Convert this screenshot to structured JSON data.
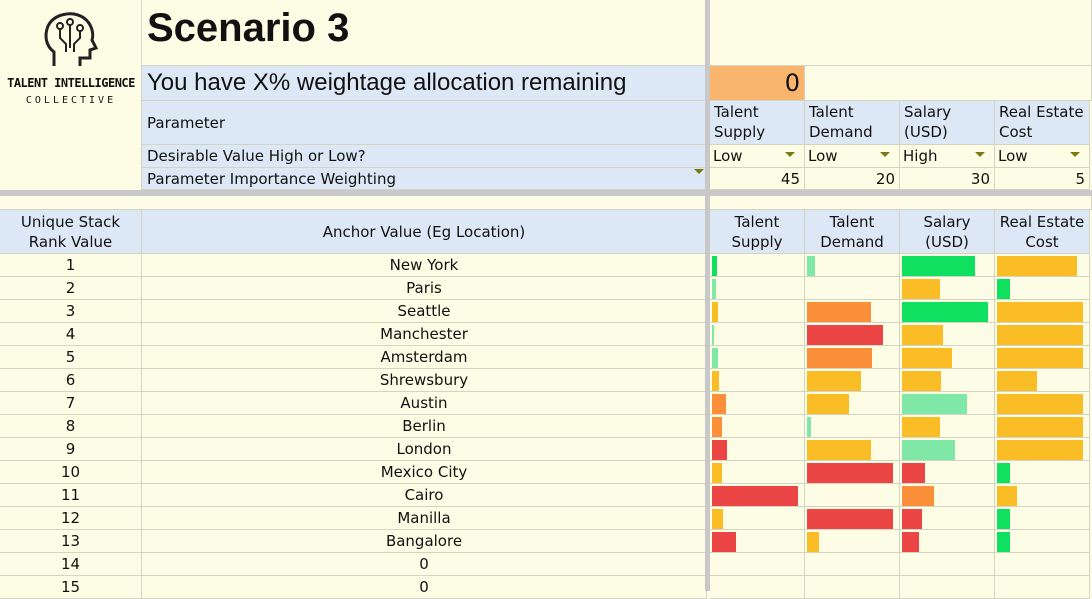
{
  "logo": {
    "line1": "TALENT INTELLIGENCE",
    "line2": "COLLECTIVE"
  },
  "title": "Scenario 3",
  "allocation": {
    "label": "You have X% weightage allocation remaining",
    "value": 0
  },
  "parameters": {
    "row_label": "Parameter",
    "desirable_label": "Desirable Value  High or Low?",
    "weight_label": "Parameter Importance Weighting",
    "columns": [
      {
        "name": "Talent Supply",
        "desirable": "Low",
        "weight": 45
      },
      {
        "name": "Talent Demand",
        "desirable": "Low",
        "weight": 20
      },
      {
        "name": "Salary (USD)",
        "desirable": "High",
        "weight": 30
      },
      {
        "name": "Real Estate Cost",
        "desirable": "Low",
        "weight": 5
      }
    ]
  },
  "table": {
    "headers": [
      "Unique Stack Rank Value",
      "Anchor Value (Eg Location)",
      "Talent Supply",
      "Talent Demand",
      "Salary (USD)",
      "Real Estate Cost"
    ],
    "bar_colors": {
      "green": "#10e060",
      "light_green": "#7fe8a6",
      "yellow": "#fbbd26",
      "orange": "#fb8f3a",
      "red": "#ec4545"
    },
    "rows": [
      {
        "rank": 1,
        "anchor": "New York",
        "bars": [
          {
            "value": 5,
            "color": "green"
          },
          {
            "value": 9,
            "color": "light_green"
          },
          {
            "value": 79,
            "color": "green"
          },
          {
            "value": 87,
            "color": "yellow"
          }
        ]
      },
      {
        "rank": 2,
        "anchor": "Paris",
        "bars": [
          {
            "value": 4,
            "color": "light_green"
          },
          {
            "value": 0,
            "color": "yellow"
          },
          {
            "value": 41,
            "color": "yellow"
          },
          {
            "value": 14,
            "color": "green"
          }
        ]
      },
      {
        "rank": 3,
        "anchor": "Seattle",
        "bars": [
          {
            "value": 7,
            "color": "yellow"
          },
          {
            "value": 70,
            "color": "orange"
          },
          {
            "value": 93,
            "color": "green"
          },
          {
            "value": 93,
            "color": "yellow"
          }
        ]
      },
      {
        "rank": 4,
        "anchor": "Manchester",
        "bars": [
          {
            "value": 2,
            "color": "light_green"
          },
          {
            "value": 83,
            "color": "red"
          },
          {
            "value": 45,
            "color": "yellow"
          },
          {
            "value": 93,
            "color": "yellow"
          }
        ]
      },
      {
        "rank": 5,
        "anchor": "Amsterdam",
        "bars": [
          {
            "value": 7,
            "color": "light_green"
          },
          {
            "value": 71,
            "color": "orange"
          },
          {
            "value": 54,
            "color": "yellow"
          },
          {
            "value": 93,
            "color": "yellow"
          }
        ]
      },
      {
        "rank": 6,
        "anchor": "Shrewsbury",
        "bars": [
          {
            "value": 8,
            "color": "yellow"
          },
          {
            "value": 59,
            "color": "yellow"
          },
          {
            "value": 42,
            "color": "yellow"
          },
          {
            "value": 43,
            "color": "yellow"
          }
        ]
      },
      {
        "rank": 7,
        "anchor": "Austin",
        "bars": [
          {
            "value": 15,
            "color": "orange"
          },
          {
            "value": 46,
            "color": "yellow"
          },
          {
            "value": 71,
            "color": "light_green"
          },
          {
            "value": 93,
            "color": "yellow"
          }
        ]
      },
      {
        "rank": 8,
        "anchor": "Berlin",
        "bars": [
          {
            "value": 11,
            "color": "orange"
          },
          {
            "value": 4,
            "color": "light_green"
          },
          {
            "value": 41,
            "color": "yellow"
          },
          {
            "value": 93,
            "color": "yellow"
          }
        ]
      },
      {
        "rank": 9,
        "anchor": "London",
        "bars": [
          {
            "value": 16,
            "color": "red"
          },
          {
            "value": 70,
            "color": "yellow"
          },
          {
            "value": 58,
            "color": "light_green"
          },
          {
            "value": 93,
            "color": "yellow"
          }
        ]
      },
      {
        "rank": 10,
        "anchor": "Mexico City",
        "bars": [
          {
            "value": 11,
            "color": "yellow"
          },
          {
            "value": 94,
            "color": "red"
          },
          {
            "value": 25,
            "color": "red"
          },
          {
            "value": 14,
            "color": "green"
          }
        ]
      },
      {
        "rank": 11,
        "anchor": "Cairo",
        "bars": [
          {
            "value": 94,
            "color": "red"
          },
          {
            "value": 0,
            "color": "yellow"
          },
          {
            "value": 35,
            "color": "orange"
          },
          {
            "value": 22,
            "color": "yellow"
          }
        ]
      },
      {
        "rank": 12,
        "anchor": "Manilla",
        "bars": [
          {
            "value": 12,
            "color": "yellow"
          },
          {
            "value": 94,
            "color": "red"
          },
          {
            "value": 22,
            "color": "red"
          },
          {
            "value": 14,
            "color": "green"
          }
        ]
      },
      {
        "rank": 13,
        "anchor": "Bangalore",
        "bars": [
          {
            "value": 26,
            "color": "red"
          },
          {
            "value": 13,
            "color": "yellow"
          },
          {
            "value": 18,
            "color": "red"
          },
          {
            "value": 14,
            "color": "green"
          }
        ]
      },
      {
        "rank": 14,
        "anchor": 0,
        "bars": []
      },
      {
        "rank": 15,
        "anchor": 0,
        "bars": []
      }
    ]
  }
}
